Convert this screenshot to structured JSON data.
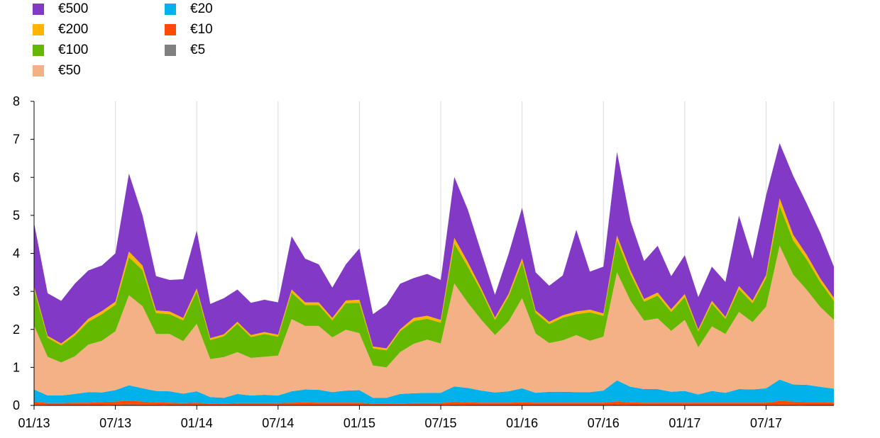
{
  "chart_data": {
    "type": "area",
    "stacked": true,
    "title": "",
    "xlabel": "",
    "ylabel": "",
    "ylim": [
      0,
      8
    ],
    "yticks": [
      "0",
      "1",
      "2",
      "3",
      "4",
      "5",
      "6",
      "7",
      "8"
    ],
    "x_tick_labels": [
      "01/13",
      "07/13",
      "01/14",
      "07/14",
      "01/15",
      "07/15",
      "01/16",
      "07/16",
      "01/17",
      "07/17"
    ],
    "x_tick_index": [
      0,
      6,
      12,
      18,
      24,
      30,
      36,
      42,
      48,
      54
    ],
    "grid": "vertical lines at x ticks",
    "legend": "top-left, two columns",
    "x": [
      "01/13",
      "02/13",
      "03/13",
      "04/13",
      "05/13",
      "06/13",
      "07/13",
      "08/13",
      "09/13",
      "10/13",
      "11/13",
      "12/13",
      "01/14",
      "02/14",
      "03/14",
      "04/14",
      "05/14",
      "06/14",
      "07/14",
      "08/14",
      "09/14",
      "10/14",
      "11/14",
      "12/14",
      "01/15",
      "02/15",
      "03/15",
      "04/15",
      "05/15",
      "06/15",
      "07/15",
      "08/15",
      "09/15",
      "10/15",
      "11/15",
      "12/15",
      "01/16",
      "02/16",
      "03/16",
      "04/16",
      "05/16",
      "06/16",
      "07/16",
      "08/16",
      "09/16",
      "10/16",
      "11/16",
      "12/16",
      "01/17",
      "02/17",
      "03/17",
      "04/17",
      "05/17",
      "06/17",
      "07/17",
      "08/17",
      "09/17",
      "10/17",
      "11/17",
      "12/17"
    ],
    "series": [
      {
        "name": "€5",
        "color": "#808080",
        "values": [
          0.02,
          0.01,
          0.01,
          0.01,
          0.01,
          0.01,
          0.02,
          0.03,
          0.02,
          0.02,
          0.01,
          0.01,
          0.01,
          0.01,
          0.01,
          0.01,
          0.01,
          0.01,
          0.01,
          0.01,
          0.01,
          0.01,
          0.01,
          0.01,
          0.01,
          0.01,
          0.01,
          0.01,
          0.01,
          0.01,
          0.01,
          0.02,
          0.01,
          0.01,
          0.01,
          0.01,
          0.01,
          0.01,
          0.01,
          0.01,
          0.01,
          0.01,
          0.01,
          0.02,
          0.01,
          0.01,
          0.01,
          0.01,
          0.01,
          0.01,
          0.01,
          0.01,
          0.01,
          0.01,
          0.01,
          0.02,
          0.02,
          0.01,
          0.01,
          0.01
        ]
      },
      {
        "name": "€10",
        "color": "#FF4B00",
        "values": [
          0.08,
          0.05,
          0.05,
          0.06,
          0.06,
          0.08,
          0.08,
          0.1,
          0.08,
          0.06,
          0.06,
          0.05,
          0.06,
          0.04,
          0.04,
          0.05,
          0.05,
          0.05,
          0.05,
          0.06,
          0.07,
          0.06,
          0.06,
          0.06,
          0.06,
          0.04,
          0.04,
          0.04,
          0.05,
          0.05,
          0.05,
          0.08,
          0.07,
          0.06,
          0.06,
          0.06,
          0.07,
          0.06,
          0.06,
          0.06,
          0.06,
          0.06,
          0.06,
          0.09,
          0.07,
          0.06,
          0.06,
          0.06,
          0.06,
          0.06,
          0.06,
          0.06,
          0.06,
          0.06,
          0.06,
          0.1,
          0.08,
          0.08,
          0.08,
          0.06
        ]
      },
      {
        "name": "€20",
        "color": "#00B1EA",
        "values": [
          0.32,
          0.2,
          0.2,
          0.23,
          0.28,
          0.25,
          0.3,
          0.4,
          0.35,
          0.3,
          0.3,
          0.25,
          0.3,
          0.17,
          0.15,
          0.24,
          0.2,
          0.22,
          0.2,
          0.3,
          0.34,
          0.34,
          0.28,
          0.32,
          0.33,
          0.15,
          0.15,
          0.25,
          0.26,
          0.27,
          0.27,
          0.4,
          0.38,
          0.32,
          0.27,
          0.3,
          0.37,
          0.26,
          0.29,
          0.29,
          0.28,
          0.28,
          0.32,
          0.55,
          0.41,
          0.36,
          0.36,
          0.29,
          0.31,
          0.22,
          0.31,
          0.26,
          0.36,
          0.35,
          0.38,
          0.56,
          0.45,
          0.45,
          0.4,
          0.37
        ]
      },
      {
        "name": "€50",
        "color": "#F3B185",
        "values": [
          1.68,
          1.02,
          0.87,
          0.99,
          1.25,
          1.36,
          1.55,
          2.37,
          2.16,
          1.5,
          1.51,
          1.38,
          1.78,
          1.0,
          1.07,
          1.1,
          0.99,
          1.0,
          1.05,
          1.9,
          1.67,
          1.68,
          1.44,
          1.6,
          1.5,
          0.85,
          0.8,
          1.1,
          1.3,
          1.4,
          1.3,
          2.71,
          2.24,
          1.86,
          1.51,
          1.84,
          2.37,
          1.56,
          1.28,
          1.35,
          1.5,
          1.35,
          1.42,
          2.84,
          2.26,
          1.8,
          1.86,
          1.6,
          1.87,
          1.24,
          1.7,
          1.55,
          2.03,
          1.77,
          2.15,
          3.52,
          2.89,
          2.5,
          2.1,
          1.81
        ]
      },
      {
        "name": "€100",
        "color": "#65B800",
        "values": [
          0.95,
          0.5,
          0.45,
          0.55,
          0.6,
          0.7,
          0.7,
          1.0,
          0.95,
          0.55,
          0.52,
          0.55,
          0.85,
          0.5,
          0.55,
          0.75,
          0.55,
          0.6,
          0.5,
          0.7,
          0.55,
          0.55,
          0.45,
          0.7,
          0.8,
          0.45,
          0.45,
          0.55,
          0.6,
          0.55,
          0.55,
          1.05,
          0.95,
          0.75,
          0.4,
          0.65,
          0.95,
          0.55,
          0.5,
          0.6,
          0.55,
          0.75,
          0.55,
          0.85,
          0.7,
          0.5,
          0.6,
          0.5,
          0.6,
          0.42,
          0.6,
          0.4,
          0.6,
          0.5,
          0.75,
          1.05,
          0.9,
          0.8,
          0.65,
          0.5
        ]
      },
      {
        "name": "€200",
        "color": "#FFB400",
        "values": [
          0.08,
          0.05,
          0.05,
          0.06,
          0.08,
          0.08,
          0.08,
          0.15,
          0.12,
          0.07,
          0.07,
          0.06,
          0.08,
          0.05,
          0.05,
          0.05,
          0.05,
          0.05,
          0.05,
          0.08,
          0.07,
          0.07,
          0.06,
          0.07,
          0.08,
          0.05,
          0.05,
          0.05,
          0.08,
          0.08,
          0.07,
          0.15,
          0.12,
          0.07,
          0.06,
          0.07,
          0.1,
          0.06,
          0.06,
          0.06,
          0.07,
          0.07,
          0.06,
          0.12,
          0.1,
          0.07,
          0.08,
          0.07,
          0.08,
          0.05,
          0.07,
          0.05,
          0.08,
          0.07,
          0.08,
          0.2,
          0.15,
          0.12,
          0.1,
          0.08
        ]
      },
      {
        "name": "€500",
        "color": "#8139C6",
        "values": [
          1.67,
          1.12,
          1.12,
          1.3,
          1.27,
          1.2,
          1.27,
          2.05,
          1.32,
          0.9,
          0.83,
          1.02,
          1.52,
          0.9,
          0.95,
          0.85,
          0.85,
          0.85,
          0.85,
          1.4,
          1.15,
          1.0,
          0.8,
          0.95,
          1.35,
          0.85,
          1.15,
          1.2,
          1.05,
          1.1,
          1.05,
          1.6,
          1.38,
          0.95,
          0.6,
          1.05,
          1.33,
          1.0,
          0.95,
          1.05,
          2.15,
          1.0,
          1.23,
          2.2,
          1.3,
          1.0,
          1.23,
          0.87,
          1.02,
          0.85,
          0.9,
          0.92,
          1.85,
          1.1,
          2.1,
          1.45,
          1.55,
          1.35,
          1.2,
          0.82
        ]
      }
    ]
  }
}
